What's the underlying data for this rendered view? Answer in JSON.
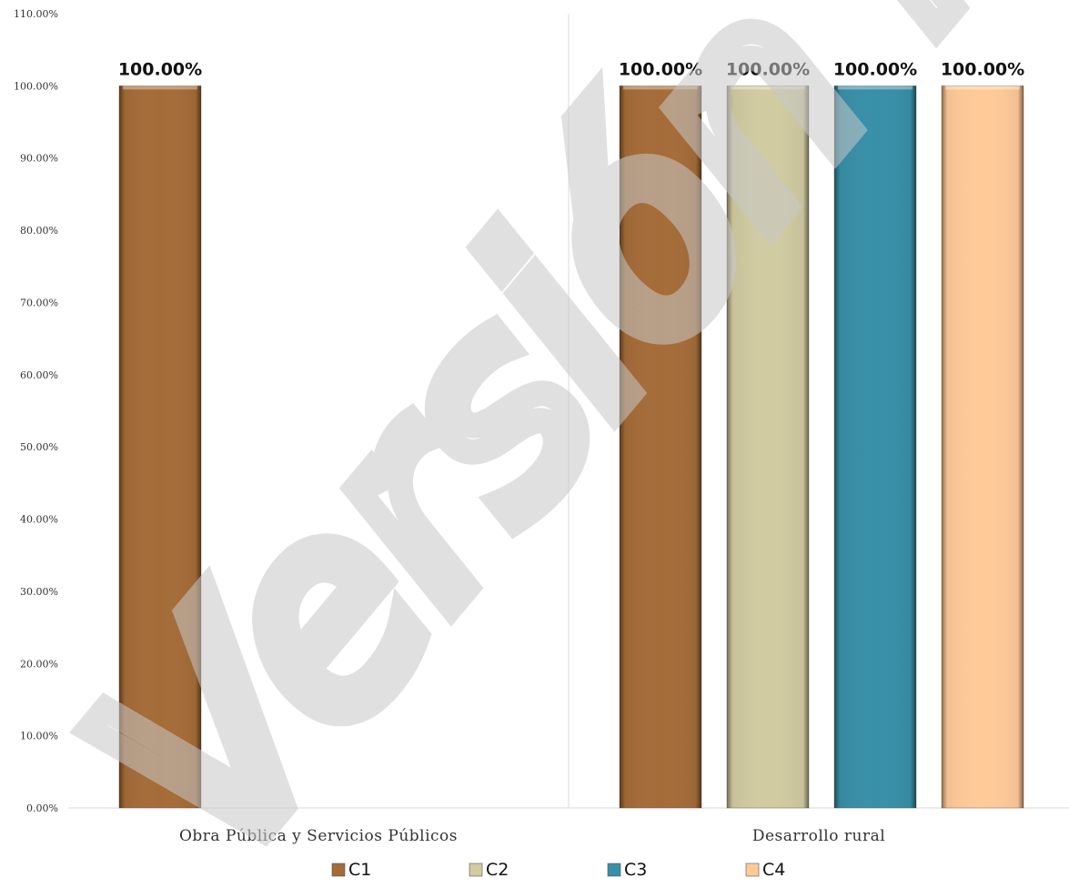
{
  "chart_data": {
    "type": "bar",
    "categories": [
      "Obra Pública y Servicios Públicos",
      "Desarrollo rural"
    ],
    "series": [
      {
        "name": "C1",
        "values": [
          100,
          100
        ],
        "color": "#A56C38"
      },
      {
        "name": "C2",
        "values": [
          null,
          100
        ],
        "color": "#D0CBA1"
      },
      {
        "name": "C3",
        "values": [
          null,
          100
        ],
        "color": "#388FA8"
      },
      {
        "name": "C4",
        "values": [
          null,
          100
        ],
        "color": "#FFCA98"
      }
    ],
    "data_labels": {
      "Obra Pública y Servicios Públicos": [
        "100.00%"
      ],
      "Desarrollo rural": [
        "100.00%",
        "100.00%",
        "100.00%",
        "100.00%"
      ]
    },
    "ylim": [
      0,
      110
    ],
    "yticks": [
      0,
      10,
      20,
      30,
      40,
      50,
      60,
      70,
      80,
      90,
      100,
      110
    ],
    "ytick_labels": [
      "0.00%",
      "10.00%",
      "20.00%",
      "30.00%",
      "40.00%",
      "50.00%",
      "60.00%",
      "70.00%",
      "80.00%",
      "90.00%",
      "100.00%",
      "110.00%"
    ],
    "title": "",
    "xlabel": "",
    "ylabel": "",
    "grid": false,
    "legend_position": "bottom"
  },
  "watermark_text": "Versión Pública"
}
